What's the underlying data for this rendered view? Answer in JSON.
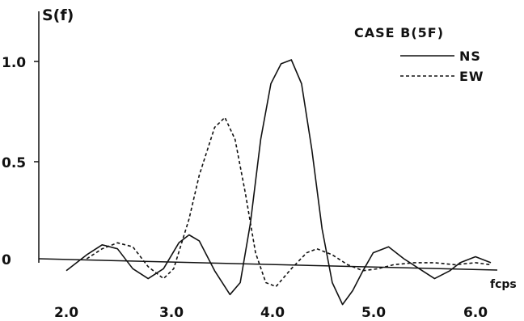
{
  "chart_data": {
    "type": "line",
    "title": "",
    "ylabel": "S(f)",
    "xlabel": "fcps",
    "xlim": [
      1.5,
      6.2
    ],
    "ylim": [
      -0.25,
      1.2
    ],
    "x_ticks": [
      "2.0",
      "3.0",
      "4.0",
      "5.0",
      "6.0"
    ],
    "y_ticks": [
      "0",
      "0.5",
      "1.0"
    ],
    "legend": {
      "title": "CASE B(5F)",
      "placement": "top-right"
    },
    "series": [
      {
        "name": "NS",
        "style": "solid",
        "x": [
          2.0,
          2.2,
          2.35,
          2.5,
          2.65,
          2.8,
          2.95,
          3.1,
          3.2,
          3.3,
          3.45,
          3.6,
          3.7,
          3.8,
          3.9,
          4.0,
          4.1,
          4.2,
          4.3,
          4.4,
          4.5,
          4.6,
          4.7,
          4.8,
          4.9,
          5.0,
          5.15,
          5.3,
          5.45,
          5.6,
          5.75,
          5.85,
          6.0,
          6.15
        ],
        "y": [
          -0.06,
          0.02,
          0.07,
          0.05,
          -0.05,
          -0.1,
          -0.05,
          0.08,
          0.12,
          0.09,
          -0.06,
          -0.18,
          -0.12,
          0.18,
          0.6,
          0.88,
          0.98,
          1.0,
          0.88,
          0.55,
          0.15,
          -0.12,
          -0.23,
          -0.16,
          -0.06,
          0.03,
          0.06,
          0.0,
          -0.05,
          -0.1,
          -0.06,
          -0.02,
          0.01,
          -0.02
        ]
      },
      {
        "name": "EW",
        "style": "dashed",
        "x": [
          2.2,
          2.35,
          2.5,
          2.65,
          2.8,
          2.95,
          3.05,
          3.2,
          3.3,
          3.45,
          3.55,
          3.65,
          3.75,
          3.85,
          3.95,
          4.05,
          4.2,
          4.35,
          4.45,
          4.6,
          4.75,
          4.9,
          5.05,
          5.2,
          5.4,
          5.6,
          5.8,
          6.0,
          6.15
        ],
        "y": [
          0.0,
          0.05,
          0.08,
          0.06,
          -0.04,
          -0.1,
          -0.05,
          0.2,
          0.42,
          0.66,
          0.71,
          0.6,
          0.33,
          0.03,
          -0.12,
          -0.14,
          -0.05,
          0.03,
          0.05,
          0.02,
          -0.03,
          -0.06,
          -0.05,
          -0.03,
          -0.02,
          -0.02,
          -0.03,
          -0.02,
          -0.03
        ]
      }
    ]
  }
}
